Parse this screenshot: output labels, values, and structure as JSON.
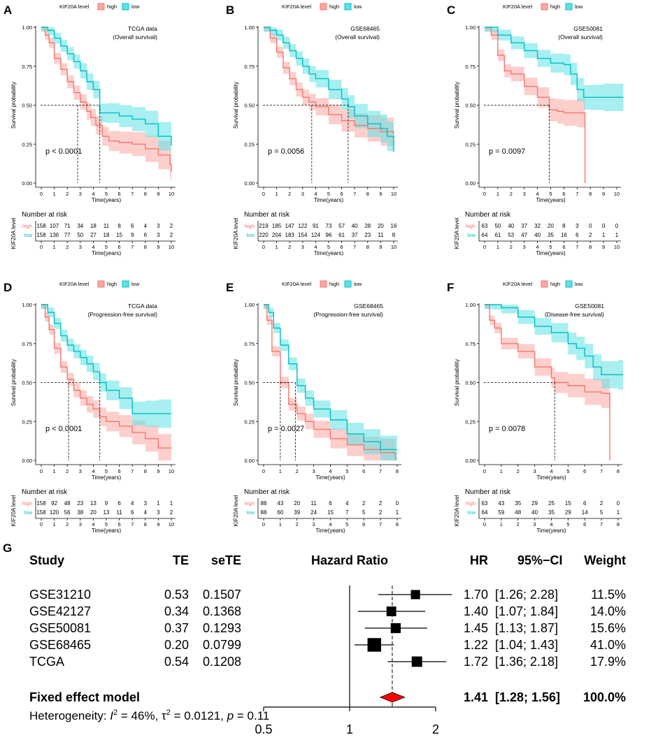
{
  "colors": {
    "high": "#f8766d",
    "low": "#00bfc4",
    "high_fill": "#f9a8a2",
    "low_fill": "#5fe1e4",
    "diamond": "#ff0000"
  },
  "km": {
    "legend_title": "KIF20A level",
    "legend_high": "high",
    "legend_low": "low",
    "ylabel": "Survival probability",
    "xlabel": "Time(years)",
    "risk_title": "Number at risk",
    "risk_ylabel": "KIF20A level",
    "yticks": [
      "0.00",
      "0.25",
      "0.50",
      "0.75",
      "1.00"
    ]
  },
  "chart_data": [
    {
      "type": "line",
      "panel": "A",
      "title": "TCGA data",
      "subtitle": "(Overall survival)",
      "pvalue": "p < 0.0001",
      "xmax": 10,
      "xticks": [
        "0",
        "1",
        "2",
        "3",
        "4",
        "5",
        "6",
        "7",
        "8",
        "9",
        "10"
      ],
      "medians": [
        2.8,
        4.5
      ],
      "series": [
        {
          "name": "high",
          "x": [
            0,
            0.3,
            0.6,
            1,
            1.5,
            2,
            2.5,
            3,
            3.5,
            3.8,
            4.2,
            4.7,
            5.2,
            6,
            7,
            8,
            9,
            9.9,
            10
          ],
          "y": [
            1,
            0.95,
            0.9,
            0.8,
            0.73,
            0.65,
            0.58,
            0.52,
            0.46,
            0.42,
            0.37,
            0.3,
            0.27,
            0.26,
            0.25,
            0.22,
            0.18,
            0.12,
            0.07
          ]
        },
        {
          "name": "low",
          "x": [
            0,
            0.5,
            1,
            1.5,
            2,
            2.5,
            3,
            3.5,
            4,
            4.5,
            5,
            6,
            7,
            8,
            9,
            10
          ],
          "y": [
            1,
            0.98,
            0.93,
            0.88,
            0.83,
            0.78,
            0.72,
            0.65,
            0.6,
            0.45,
            0.45,
            0.43,
            0.41,
            0.38,
            0.3,
            0.24
          ]
        }
      ],
      "risk": {
        "ticks": [
          "0",
          "1",
          "2",
          "3",
          "4",
          "5",
          "6",
          "7",
          "8",
          "9",
          "10"
        ],
        "high": [
          "158",
          "107",
          "71",
          "34",
          "18",
          "11",
          "8",
          "6",
          "4",
          "3",
          "2"
        ],
        "low": [
          "158",
          "136",
          "77",
          "50",
          "27",
          "18",
          "15",
          "9",
          "6",
          "3",
          "2"
        ]
      }
    },
    {
      "type": "line",
      "panel": "B",
      "title": "GSE68465",
      "subtitle": "(Overall survival)",
      "pvalue": "p = 0.0056",
      "xmax": 10,
      "xticks": [
        "0",
        "1",
        "2",
        "3",
        "4",
        "5",
        "6",
        "7",
        "8",
        "9",
        "10"
      ],
      "medians": [
        3.7,
        6.5
      ],
      "series": [
        {
          "name": "high",
          "x": [
            0,
            0.5,
            1,
            1.5,
            2,
            2.5,
            3,
            3.5,
            4,
            5,
            6,
            7,
            8,
            9,
            10
          ],
          "y": [
            1,
            0.93,
            0.84,
            0.74,
            0.67,
            0.6,
            0.55,
            0.52,
            0.49,
            0.44,
            0.4,
            0.37,
            0.35,
            0.33,
            0.31
          ]
        },
        {
          "name": "low",
          "x": [
            0,
            0.5,
            1,
            1.5,
            2,
            2.5,
            3,
            3.5,
            4,
            5,
            6,
            6.5,
            7,
            8,
            9,
            9.5,
            10
          ],
          "y": [
            1,
            0.98,
            0.95,
            0.9,
            0.85,
            0.8,
            0.75,
            0.7,
            0.67,
            0.6,
            0.54,
            0.49,
            0.43,
            0.38,
            0.35,
            0.3,
            0.2
          ]
        }
      ],
      "risk": {
        "ticks": [
          "0",
          "1",
          "2",
          "3",
          "4",
          "5",
          "6",
          "7",
          "8",
          "9",
          "10"
        ],
        "high": [
          "219",
          "185",
          "147",
          "122",
          "91",
          "73",
          "57",
          "40",
          "28",
          "20",
          "16"
        ],
        "low": [
          "220",
          "204",
          "183",
          "154",
          "124",
          "96",
          "61",
          "37",
          "23",
          "11",
          "8"
        ]
      }
    },
    {
      "type": "line",
      "panel": "C",
      "title": "GSE50081",
      "subtitle": "(Overall survival)",
      "pvalue": "p = 0.0097",
      "xmax": 10,
      "xticks": [
        "0",
        "1",
        "2",
        "3",
        "4",
        "5",
        "6",
        "7",
        "8",
        "9",
        "10"
      ],
      "medians": [
        4.9
      ],
      "series": [
        {
          "name": "high",
          "x": [
            0,
            0.5,
            1,
            1.5,
            2,
            3,
            4,
            4.9,
            5.5,
            6,
            7,
            7.6,
            7.6
          ],
          "y": [
            1,
            0.95,
            0.82,
            0.72,
            0.7,
            0.62,
            0.55,
            0.47,
            0.46,
            0.45,
            0.45,
            0.45,
            0
          ]
        },
        {
          "name": "low",
          "x": [
            0,
            0.5,
            1,
            2,
            3,
            4,
            5,
            6,
            6.5,
            7,
            7.5,
            8,
            9,
            10.5
          ],
          "y": [
            1,
            1,
            0.95,
            0.9,
            0.85,
            0.8,
            0.77,
            0.76,
            0.7,
            0.6,
            0.55,
            0.55,
            0.55,
            0.55
          ]
        }
      ],
      "risk": {
        "ticks": [
          "0",
          "1",
          "2",
          "3",
          "4",
          "5",
          "6",
          "7",
          "8",
          "9",
          "10"
        ],
        "high": [
          "63",
          "50",
          "40",
          "37",
          "32",
          "20",
          "8",
          "3",
          "0",
          "0",
          "0"
        ],
        "low": [
          "64",
          "61",
          "53",
          "47",
          "40",
          "35",
          "16",
          "6",
          "2",
          "1",
          "1"
        ]
      }
    },
    {
      "type": "line",
      "panel": "D",
      "title": "TCGA data",
      "subtitle": "(Progression-free survival)",
      "pvalue": "p < 0.0001",
      "xmax": 10,
      "xticks": [
        "0",
        "1",
        "2",
        "3",
        "4",
        "5",
        "6",
        "7",
        "8",
        "9",
        "10"
      ],
      "medians": [
        2.1,
        4.5
      ],
      "series": [
        {
          "name": "high",
          "x": [
            0,
            0.3,
            0.6,
            1,
            1.5,
            2,
            2.5,
            3,
            3.5,
            4,
            4.5,
            5,
            6,
            7,
            8,
            9,
            10
          ],
          "y": [
            1,
            0.92,
            0.84,
            0.72,
            0.6,
            0.52,
            0.45,
            0.4,
            0.36,
            0.33,
            0.28,
            0.25,
            0.22,
            0.18,
            0.14,
            0.08,
            0.08
          ]
        },
        {
          "name": "low",
          "x": [
            0,
            0.5,
            1,
            1.5,
            2,
            2.5,
            3,
            3.5,
            4,
            4.5,
            5,
            6,
            7,
            8,
            9,
            10
          ],
          "y": [
            1,
            0.95,
            0.88,
            0.8,
            0.74,
            0.7,
            0.66,
            0.62,
            0.57,
            0.5,
            0.45,
            0.4,
            0.3,
            0.3,
            0.3,
            0.3
          ]
        }
      ],
      "risk": {
        "ticks": [
          "0",
          "1",
          "2",
          "3",
          "4",
          "5",
          "6",
          "7",
          "8",
          "9",
          "10"
        ],
        "high": [
          "158",
          "92",
          "48",
          "23",
          "13",
          "9",
          "6",
          "4",
          "3",
          "1",
          "1"
        ],
        "low": [
          "158",
          "120",
          "56",
          "38",
          "20",
          "13",
          "11",
          "6",
          "4",
          "3",
          "2"
        ]
      }
    },
    {
      "type": "line",
      "panel": "E",
      "title": "GSE68465",
      "subtitle": "(Progression-free survival)",
      "pvalue": "p = 0.0027",
      "xmax": 8,
      "xticks": [
        "0",
        "1",
        "2",
        "3",
        "4",
        "5",
        "6",
        "7",
        "8"
      ],
      "medians": [
        1.0,
        1.9
      ],
      "series": [
        {
          "name": "high",
          "x": [
            0,
            0.2,
            0.5,
            1,
            1.5,
            2,
            2.5,
            3,
            4,
            5,
            6,
            7,
            7.9,
            7.9
          ],
          "y": [
            1,
            0.9,
            0.7,
            0.5,
            0.36,
            0.3,
            0.25,
            0.2,
            0.14,
            0.1,
            0.07,
            0.05,
            0.05,
            0
          ]
        },
        {
          "name": "low",
          "x": [
            0,
            0.3,
            0.6,
            1,
            1.5,
            2,
            2.5,
            3,
            4,
            5,
            6,
            7,
            8
          ],
          "y": [
            1,
            0.95,
            0.85,
            0.74,
            0.62,
            0.48,
            0.4,
            0.33,
            0.26,
            0.17,
            0.12,
            0.07,
            0.07
          ]
        }
      ],
      "risk": {
        "ticks": [
          "0",
          "1",
          "2",
          "3",
          "4",
          "5",
          "6",
          "7",
          "8"
        ],
        "high": [
          "88",
          "43",
          "20",
          "11",
          "6",
          "4",
          "2",
          "2",
          "0"
        ],
        "low": [
          "88",
          "60",
          "39",
          "24",
          "15",
          "7",
          "5",
          "2",
          "1"
        ]
      }
    },
    {
      "type": "line",
      "panel": "F",
      "title": "GSE50081",
      "subtitle": "(Disease-free survival)",
      "pvalue": "p = 0.0078",
      "xmax": 8,
      "xticks": [
        "0",
        "1",
        "2",
        "3",
        "4",
        "5",
        "6",
        "7",
        "8"
      ],
      "medians": [
        4.2
      ],
      "series": [
        {
          "name": "high",
          "x": [
            0,
            0.3,
            0.6,
            1,
            2,
            3,
            4,
            4.2,
            5,
            6,
            7,
            7.5,
            7.5
          ],
          "y": [
            1,
            0.9,
            0.85,
            0.75,
            0.7,
            0.6,
            0.53,
            0.5,
            0.48,
            0.44,
            0.43,
            0.43,
            0
          ]
        },
        {
          "name": "low",
          "x": [
            0,
            0.5,
            1,
            2,
            3,
            4,
            5,
            5.5,
            6,
            6.5,
            7,
            8,
            8.3
          ],
          "y": [
            1,
            1,
            0.98,
            0.92,
            0.86,
            0.82,
            0.75,
            0.72,
            0.67,
            0.6,
            0.55,
            0.55,
            0.55
          ]
        }
      ],
      "risk": {
        "ticks": [
          "0",
          "1",
          "2",
          "3",
          "4",
          "5",
          "6",
          "7",
          "8"
        ],
        "high": [
          "63",
          "43",
          "35",
          "29",
          "25",
          "15",
          "6",
          "2",
          "0"
        ],
        "low": [
          "64",
          "59",
          "48",
          "40",
          "35",
          "29",
          "14",
          "5",
          "1"
        ]
      }
    },
    {
      "type": "table",
      "panel": "G",
      "headers": {
        "study": "Study",
        "te": "TE",
        "sete": "seTE",
        "hr_axis": "Hazard Ratio",
        "hr": "HR",
        "ci": "95%−CI",
        "weight": "Weight"
      },
      "rows": [
        {
          "study": "GSE31210",
          "te": "0.53",
          "sete": "0.1507",
          "hr_value": 1.7,
          "lo": 1.26,
          "hi": 2.28,
          "w": 11.5,
          "hr": "1.70",
          "ci": "[1.26; 2.28]",
          "weight": "11.5%"
        },
        {
          "study": "GSE42127",
          "te": "0.34",
          "sete": "0.1368",
          "hr_value": 1.4,
          "lo": 1.07,
          "hi": 1.84,
          "w": 14.0,
          "hr": "1.40",
          "ci": "[1.07; 1.84]",
          "weight": "14.0%"
        },
        {
          "study": "GSE50081",
          "te": "0.37",
          "sete": "0.1293",
          "hr_value": 1.45,
          "lo": 1.13,
          "hi": 1.87,
          "w": 15.6,
          "hr": "1.45",
          "ci": "[1.13; 1.87]",
          "weight": "15.6%"
        },
        {
          "study": "GSE68465",
          "te": "0.20",
          "sete": "0.0799",
          "hr_value": 1.22,
          "lo": 1.04,
          "hi": 1.43,
          "w": 41.0,
          "hr": "1.22",
          "ci": "[1.04; 1.43]",
          "weight": "41.0%"
        },
        {
          "study": "TCGA",
          "te": "0.54",
          "sete": "0.1208",
          "hr_value": 1.72,
          "lo": 1.36,
          "hi": 2.18,
          "w": 17.9,
          "hr": "1.72",
          "ci": "[1.36; 2.18]",
          "weight": "17.9%"
        }
      ],
      "pooled": {
        "label": "Fixed effect model",
        "hr_value": 1.41,
        "lo": 1.28,
        "hi": 1.56,
        "hr": "1.41",
        "ci": "[1.28; 1.56]",
        "weight": "100.0%"
      },
      "heterogeneity": {
        "prefix": "Heterogeneity: ",
        "i2_sym": "I",
        "i2_exp": "2",
        "i2_val": " = 46%, ",
        "tau_sym": "τ",
        "tau_exp": "2",
        "tau_val": " = 0.0121, ",
        "p_sym": "p",
        "p_val": " = 0.11"
      },
      "xaxis": {
        "ticks": [
          0.5,
          1,
          2
        ],
        "tick_labels": [
          "0.5",
          "1",
          "2"
        ],
        "scale": "log"
      }
    }
  ]
}
